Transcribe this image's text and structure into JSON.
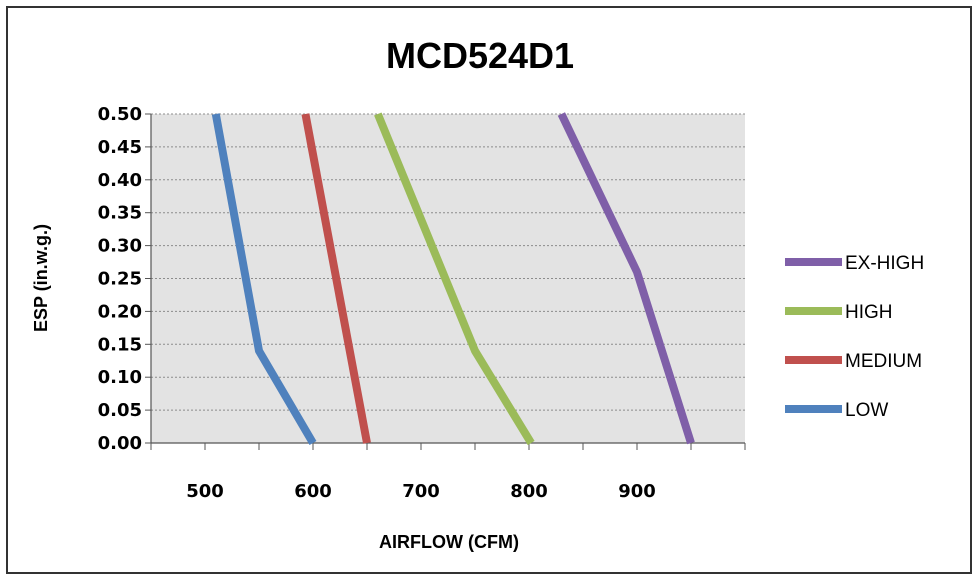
{
  "chart_data": {
    "type": "line",
    "title": "MCD524D1",
    "xlabel": "AIRFLOW (CFM)",
    "ylabel": "ESP (in.w.g.)",
    "xlim": [
      450,
      1000
    ],
    "ylim": [
      0,
      0.5
    ],
    "x_ticks": [
      "500",
      "600",
      "700",
      "800",
      "900"
    ],
    "x_tick_values": [
      500,
      600,
      700,
      800,
      900
    ],
    "y_ticks": [
      "0.00",
      "0.05",
      "0.10",
      "0.15",
      "0.20",
      "0.25",
      "0.30",
      "0.35",
      "0.40",
      "0.45",
      "0.50"
    ],
    "y_tick_values": [
      0,
      0.05,
      0.1,
      0.15,
      0.2,
      0.25,
      0.3,
      0.35,
      0.4,
      0.45,
      0.5
    ],
    "grid": "horizontal dashed",
    "legend_position": "right",
    "plot_background": "#e3e3e3",
    "series": [
      {
        "name": "EX-HIGH",
        "color": "#7f5fa8",
        "points": [
          [
            950,
            0.0
          ],
          [
            900,
            0.26
          ],
          [
            830,
            0.5
          ]
        ]
      },
      {
        "name": "HIGH",
        "color": "#9bbb59",
        "points": [
          [
            802,
            0.0
          ],
          [
            750,
            0.14
          ],
          [
            660,
            0.5
          ]
        ]
      },
      {
        "name": "MEDIUM",
        "color": "#c0504d",
        "points": [
          [
            650,
            0.0
          ],
          [
            593,
            0.5
          ]
        ]
      },
      {
        "name": "LOW",
        "color": "#4f81bd",
        "points": [
          [
            600,
            0.0
          ],
          [
            550,
            0.14
          ],
          [
            510,
            0.5
          ]
        ]
      }
    ]
  }
}
